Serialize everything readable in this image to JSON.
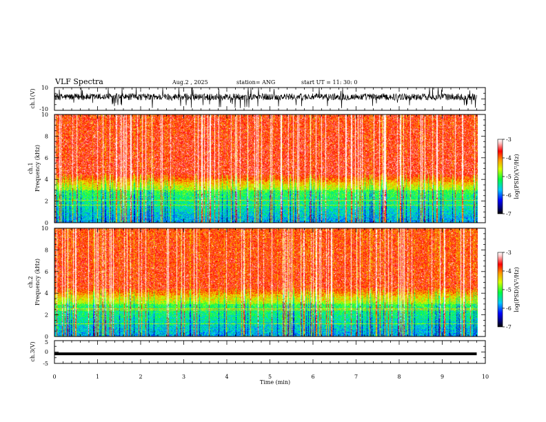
{
  "header": {
    "title": "VLF Spectra",
    "date": "Aug.2  , 2025",
    "station": "station= ANG",
    "start_ut": "start  UT  =    11: 30: 0"
  },
  "chart_data": {
    "type": "heatmap",
    "title": "VLF Spectra",
    "xlabel": "Time  (min)",
    "xlim": [
      0,
      10
    ],
    "xticks": [
      "0",
      "1",
      "2",
      "3",
      "4",
      "5",
      "6",
      "7",
      "8",
      "9",
      "10"
    ],
    "panels": [
      {
        "id": "ch1_waveform",
        "type": "line",
        "ylabel": "ch.1(V)",
        "ylim": [
          -10,
          10
        ],
        "yticks": [
          "10",
          "-10"
        ],
        "baseline_value": 0,
        "data_end_min": 9.8
      },
      {
        "id": "ch1_spectrogram",
        "type": "heatmap",
        "ylabel_line1": "ch.1",
        "ylabel_line2": "Frequency  (kHz)",
        "ylim": [
          0,
          10
        ],
        "yticks": [
          "0",
          "2",
          "4",
          "6",
          "8",
          "10"
        ],
        "data_end_min": 9.8,
        "colorbar": {
          "label": "log(PSD)(V²/Hz)",
          "ticks": [
            "-3",
            "-4",
            "-5",
            "-6",
            "-7"
          ],
          "range": [
            -7,
            -3
          ]
        }
      },
      {
        "id": "ch2_spectrogram",
        "type": "heatmap",
        "ylabel_line1": "ch.2",
        "ylabel_line2": "Frequency  (kHz)",
        "ylim": [
          0,
          10
        ],
        "yticks": [
          "0",
          "2",
          "4",
          "6",
          "8",
          "10"
        ],
        "data_end_min": 9.8,
        "colorbar": {
          "label": "log(PSD)(V²/Hz)",
          "ticks": [
            "-3",
            "-4",
            "-5",
            "-6",
            "-7"
          ],
          "range": [
            -7,
            -3
          ]
        }
      },
      {
        "id": "ch3_waveform",
        "type": "line",
        "ylabel": "ch.3(V)",
        "ylim": [
          -5,
          5
        ],
        "yticks": [
          "5",
          "0",
          "-5"
        ],
        "constant_value": -0.8,
        "data_end_min": 9.8
      }
    ]
  }
}
